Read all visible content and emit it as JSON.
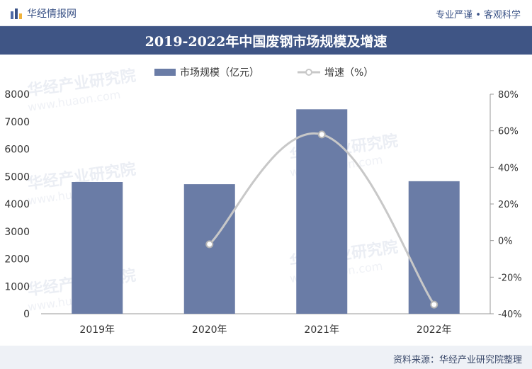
{
  "header": {
    "brand": "华经情报网",
    "tagline": "专业严谨 • 客观科学"
  },
  "footer": {
    "source": "资料来源：华经产业研究院整理"
  },
  "watermark": {
    "text": "华经产业研究院",
    "url": "www.huaon.com"
  },
  "colors": {
    "bar": "#6a7ca6",
    "line": "#c8c8c8",
    "title_bg": "#3f5585",
    "accent": "#3b5387"
  },
  "chart_data": {
    "type": "bar",
    "title": "2019-2022年中国废钢市场规模及增速",
    "categories": [
      "2019年",
      "2020年",
      "2021年",
      "2022年"
    ],
    "series": [
      {
        "name": "市场规模（亿元）",
        "type": "bar",
        "axis": "left",
        "values": [
          4800,
          4720,
          7450,
          4830
        ]
      },
      {
        "name": "增速（%）",
        "type": "line",
        "axis": "right",
        "values": [
          null,
          -2,
          58,
          -35
        ]
      }
    ],
    "ylim_left": [
      0,
      8000
    ],
    "yticks_left": [
      "0",
      "1000",
      "2000",
      "3000",
      "4000",
      "5000",
      "6000",
      "7000",
      "8000"
    ],
    "ylim_right": [
      -40,
      80
    ],
    "yticks_right": [
      "-40%",
      "-20%",
      "0%",
      "20%",
      "40%",
      "60%",
      "80%"
    ],
    "legend_position": "top-center",
    "grid": false
  }
}
